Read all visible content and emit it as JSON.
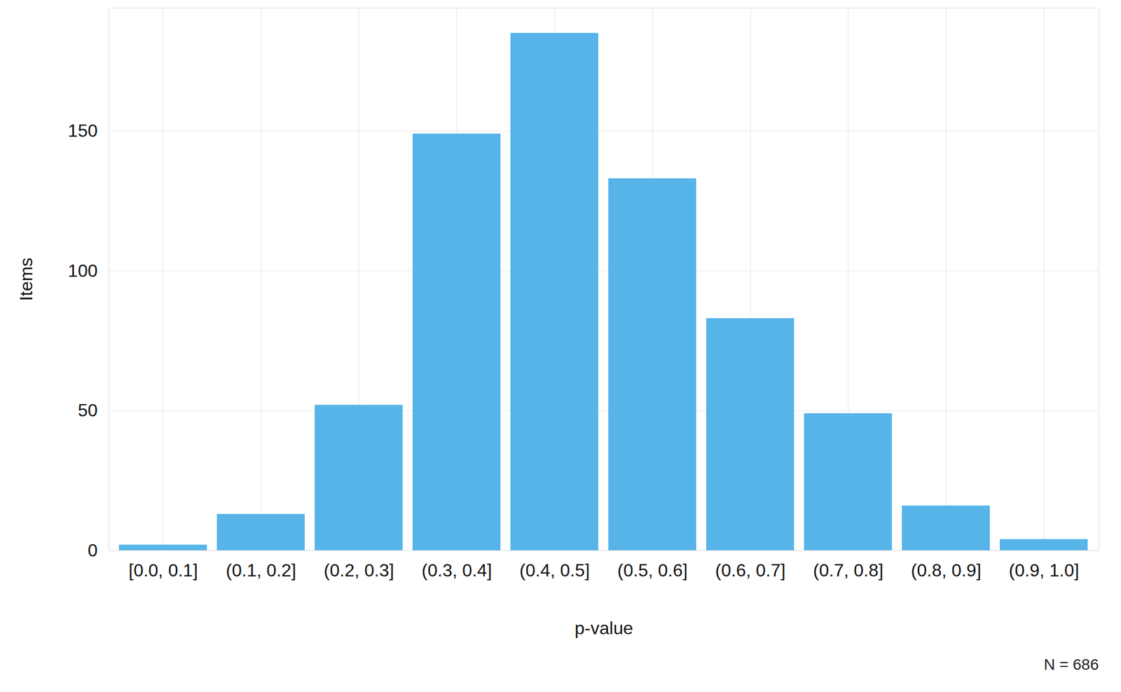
{
  "chart_data": {
    "type": "bar",
    "categories": [
      "[0.0, 0.1]",
      "(0.1, 0.2]",
      "(0.2, 0.3]",
      "(0.3, 0.4]",
      "(0.4, 0.5]",
      "(0.5, 0.6]",
      "(0.6, 0.7]",
      "(0.7, 0.8]",
      "(0.8, 0.9]",
      "(0.9, 1.0]"
    ],
    "values": [
      2,
      13,
      52,
      149,
      185,
      133,
      83,
      49,
      16,
      4
    ],
    "color": "#56b4e9",
    "x_label": "p-value",
    "y_label": "Items",
    "caption": "N = 686",
    "ylim": [
      0,
      194
    ],
    "yticks": [
      0,
      50,
      100,
      150
    ],
    "grid": true
  }
}
